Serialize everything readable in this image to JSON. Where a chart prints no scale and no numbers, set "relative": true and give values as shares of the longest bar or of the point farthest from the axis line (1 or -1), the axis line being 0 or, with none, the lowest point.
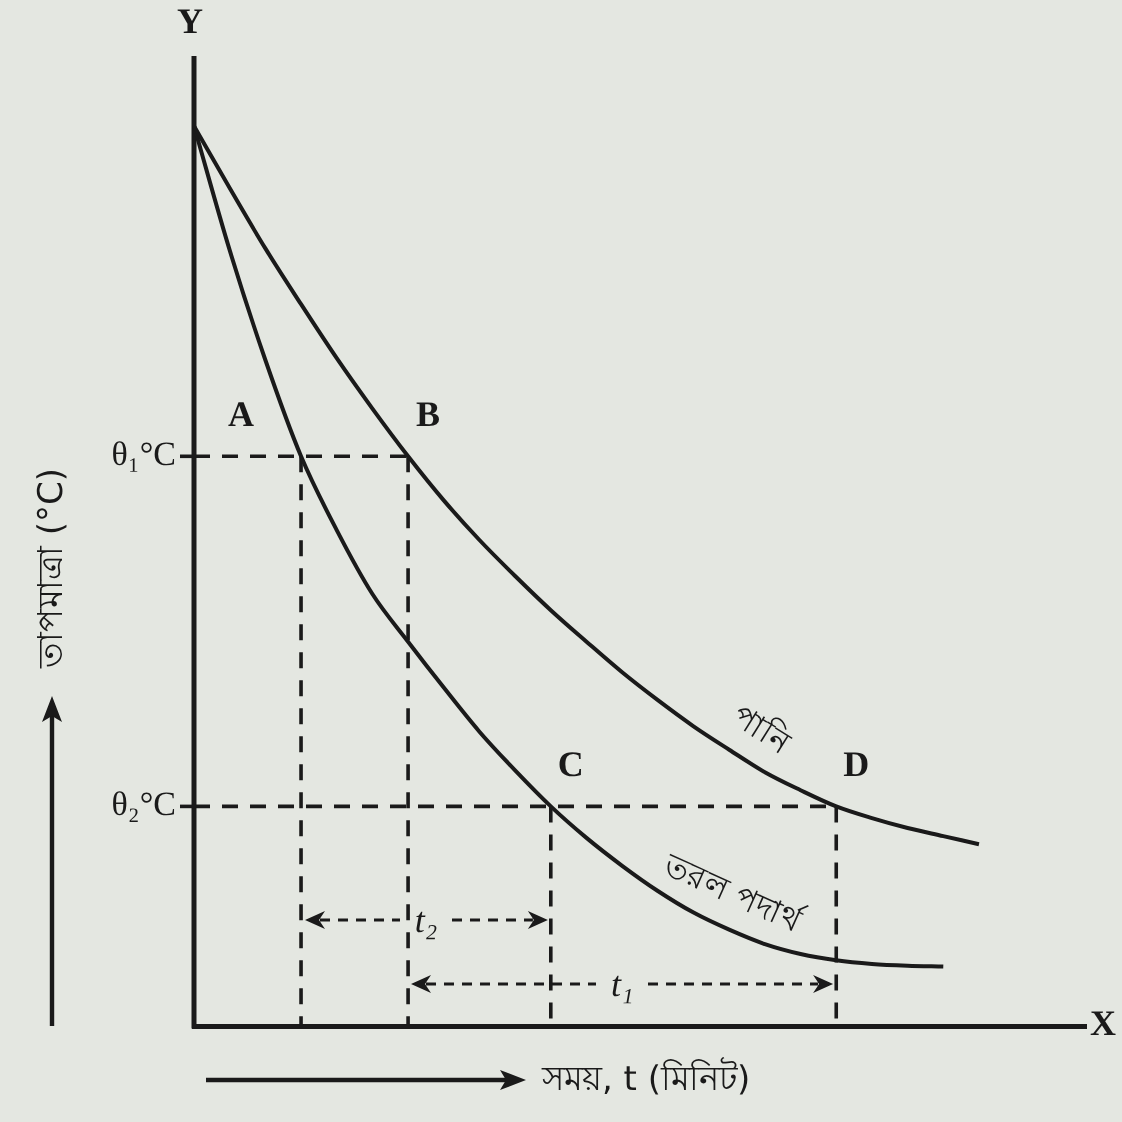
{
  "chart_data": {
    "type": "line",
    "relative": true,
    "xlabel": "সময়, t (মিনিট)",
    "ylabel": "তাপমাত্রা (°C)",
    "marker": "none",
    "categories": [
      null,
      null,
      null,
      null,
      null,
      null,
      null,
      null,
      null,
      null,
      null,
      null,
      null,
      null,
      null,
      null,
      null,
      null,
      null,
      null,
      null,
      null,
      null,
      null,
      null,
      null
    ],
    "series": [
      {
        "name": "পানি",
        "color": "#1a1a1a",
        "values": [
          1,
          0.931,
          0.864,
          0.802,
          0.742,
          0.686,
          0.633,
          0.584,
          0.54,
          0.5,
          0.462,
          0.427,
          0.393,
          0.362,
          0.333,
          0.307,
          0.282,
          0.262,
          0.244,
          0.231,
          0.22,
          0.211,
          0.202,
          null,
          null,
          null
        ]
      },
      {
        "name": "তরল পদার্থ",
        "color": "#1a1a1a",
        "values": [
          1,
          0.862,
          0.74,
          0.633,
          0.551,
          0.48,
          0.427,
          0.376,
          0.327,
          0.284,
          0.244,
          0.209,
          0.178,
          0.15,
          0.126,
          0.107,
          0.091,
          0.08,
          0.073,
          0.069,
          0.067,
          0.066,
          null,
          null,
          null,
          null
        ]
      }
    ],
    "ref_lines": [
      {
        "axis": "y",
        "value": 0.633,
        "label": "θ₁°C",
        "line_style": "dashed",
        "color": "#1a1a1a"
      },
      {
        "axis": "y",
        "value": 0.244,
        "label": "θ₂°C",
        "line_style": "dashed",
        "color": "#1a1a1a"
      }
    ],
    "annotations": [
      "Y",
      "X",
      "A",
      "B",
      "C",
      "D",
      "t₁",
      "t₂"
    ]
  }
}
